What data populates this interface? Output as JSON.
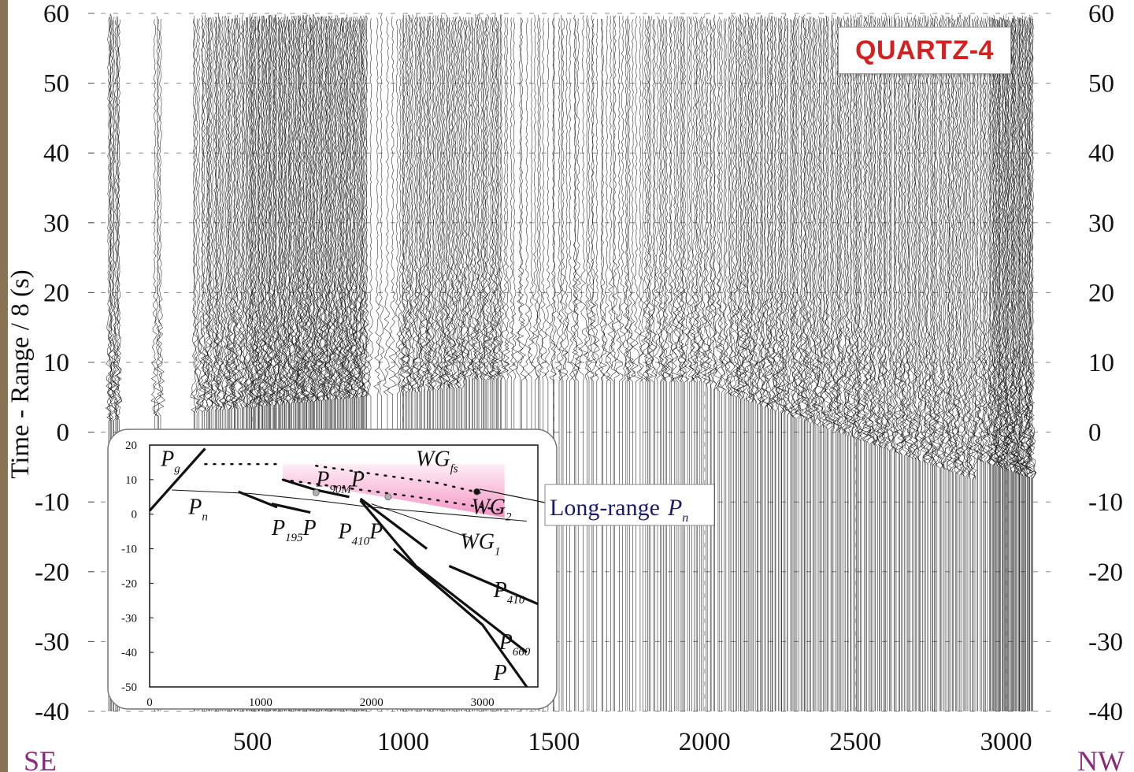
{
  "chart_data": {
    "type": "seismic record section",
    "title": "QUARTZ-4",
    "ylabel": "Time - Range / 8 (s)",
    "xlabel": "",
    "xlim": [
      -45,
      3150
    ],
    "ylim": [
      -40,
      60
    ],
    "xticks": [
      "500",
      "1000",
      "1500",
      "2000",
      "2500",
      "3000"
    ],
    "xtick_values": [
      500,
      1000,
      1500,
      2000,
      2500,
      3000
    ],
    "yticks": [
      "60",
      "50",
      "40",
      "30",
      "20",
      "10",
      "0",
      "-10",
      "-20",
      "-30",
      "-40"
    ],
    "ytick_values": [
      60,
      50,
      40,
      30,
      20,
      10,
      0,
      -10,
      -20,
      -30,
      -40
    ],
    "left_direction": "SE",
    "right_direction": "NW",
    "grid": "dashed",
    "annotation": {
      "label": "Long-range",
      "symbol": "P",
      "subscript": "n"
    },
    "inset": {
      "type": "travel-time schematic",
      "xticks": [
        "0",
        "1000",
        "2000",
        "3000"
      ],
      "xtick_values": [
        0,
        1000,
        2000,
        3000
      ],
      "yticks": [
        "20",
        "10",
        "0",
        "-10",
        "-20",
        "-30",
        "-40",
        "-50"
      ],
      "ytick_values": [
        20,
        10,
        0,
        -10,
        -20,
        -30,
        -40,
        -50
      ],
      "xlim": [
        0,
        3500
      ],
      "ylim": [
        -50,
        20
      ],
      "shaded_region": {
        "x": [
          1200,
          3200
        ],
        "y_top": [
          14.5,
          14.5
        ],
        "y_bottom": [
          10,
          -1
        ],
        "color": "#f070b0"
      },
      "phases": [
        {
          "label": "P",
          "sub": "g",
          "x": 100,
          "y": 14
        },
        {
          "label": "P",
          "sub": "n",
          "x": 350,
          "y": 0
        },
        {
          "label": "P",
          "sub": "195",
          "label2": "P",
          "x": 1100,
          "y": -6
        },
        {
          "label": "P",
          "sub": "90M",
          "label2": "P",
          "x": 1500,
          "y": 8
        },
        {
          "label": "P",
          "sub": "410",
          "label2": "P",
          "x": 1700,
          "y": -7
        },
        {
          "label": "WG",
          "sub": "fs",
          "x": 2400,
          "y": 14
        },
        {
          "label": "WG",
          "sub": "2",
          "x": 2900,
          "y": 0
        },
        {
          "label": "WG",
          "sub": "1",
          "x": 2800,
          "y": -10
        },
        {
          "label": "P",
          "sub": "410",
          "x": 3100,
          "y": -24
        },
        {
          "label": "P",
          "sub": "660",
          "x": 3150,
          "y": -39
        },
        {
          "label": "P",
          "sub": "",
          "x": 3100,
          "y": -48
        }
      ],
      "curves": [
        {
          "name": "Pg",
          "points": [
            [
              0,
              1
            ],
            [
              500,
              19
            ]
          ],
          "style": "thick"
        },
        {
          "name": "Pn",
          "points": [
            [
              200,
              7
            ],
            [
              900,
              6
            ],
            [
              1500,
              4
            ],
            [
              2000,
              2
            ],
            [
              3400,
              -2
            ]
          ],
          "style": "thin"
        },
        {
          "name": "Pg-dotted",
          "points": [
            [
              500,
              14.5
            ],
            [
              1200,
              14.5
            ]
          ],
          "style": "dotted"
        },
        {
          "name": "WGfs",
          "points": [
            [
              1500,
              14
            ],
            [
              2600,
              9
            ],
            [
              3000,
              6
            ]
          ],
          "style": "dotted"
        },
        {
          "name": "WG2",
          "points": [
            [
              1200,
              10
            ],
            [
              2400,
              5
            ],
            [
              3200,
              1
            ]
          ],
          "style": "dotted"
        },
        {
          "name": "P195P",
          "points": [
            [
              800,
              6.5
            ],
            [
              1150,
              2
            ]
          ],
          "style": "thick"
        },
        {
          "name": "P195P-b",
          "points": [
            [
              1100,
              3
            ],
            [
              1450,
              0.5
            ]
          ],
          "style": "thick"
        },
        {
          "name": "P90MP",
          "points": [
            [
              1200,
              10
            ],
            [
              1500,
              7
            ],
            [
              1800,
              5
            ]
          ],
          "style": "thick"
        },
        {
          "name": "P410P",
          "points": [
            [
              1900,
              4.5
            ],
            [
              2500,
              -10
            ]
          ],
          "style": "thick"
        },
        {
          "name": "P660",
          "points": [
            [
              1900,
              4
            ],
            [
              2400,
              -15
            ],
            [
              3400,
              -40
            ]
          ],
          "style": "thick"
        },
        {
          "name": "P",
          "points": [
            [
              2200,
              -10
            ],
            [
              3000,
              -32
            ],
            [
              3400,
              -50
            ]
          ],
          "style": "thick"
        },
        {
          "name": "P410",
          "points": [
            [
              2700,
              -15
            ],
            [
              3500,
              -26
            ]
          ],
          "style": "thick"
        },
        {
          "name": "WG1",
          "points": [
            [
              2000,
              3
            ],
            [
              2900,
              -7
            ]
          ],
          "style": "thin"
        }
      ],
      "markers": [
        {
          "x": 1500,
          "y": 6.2,
          "color": "#b0b0b0"
        },
        {
          "x": 2150,
          "y": 5.0,
          "color": "#b0b0b0"
        },
        {
          "x": 2950,
          "y": 6.5,
          "color": "#111111"
        }
      ]
    }
  }
}
